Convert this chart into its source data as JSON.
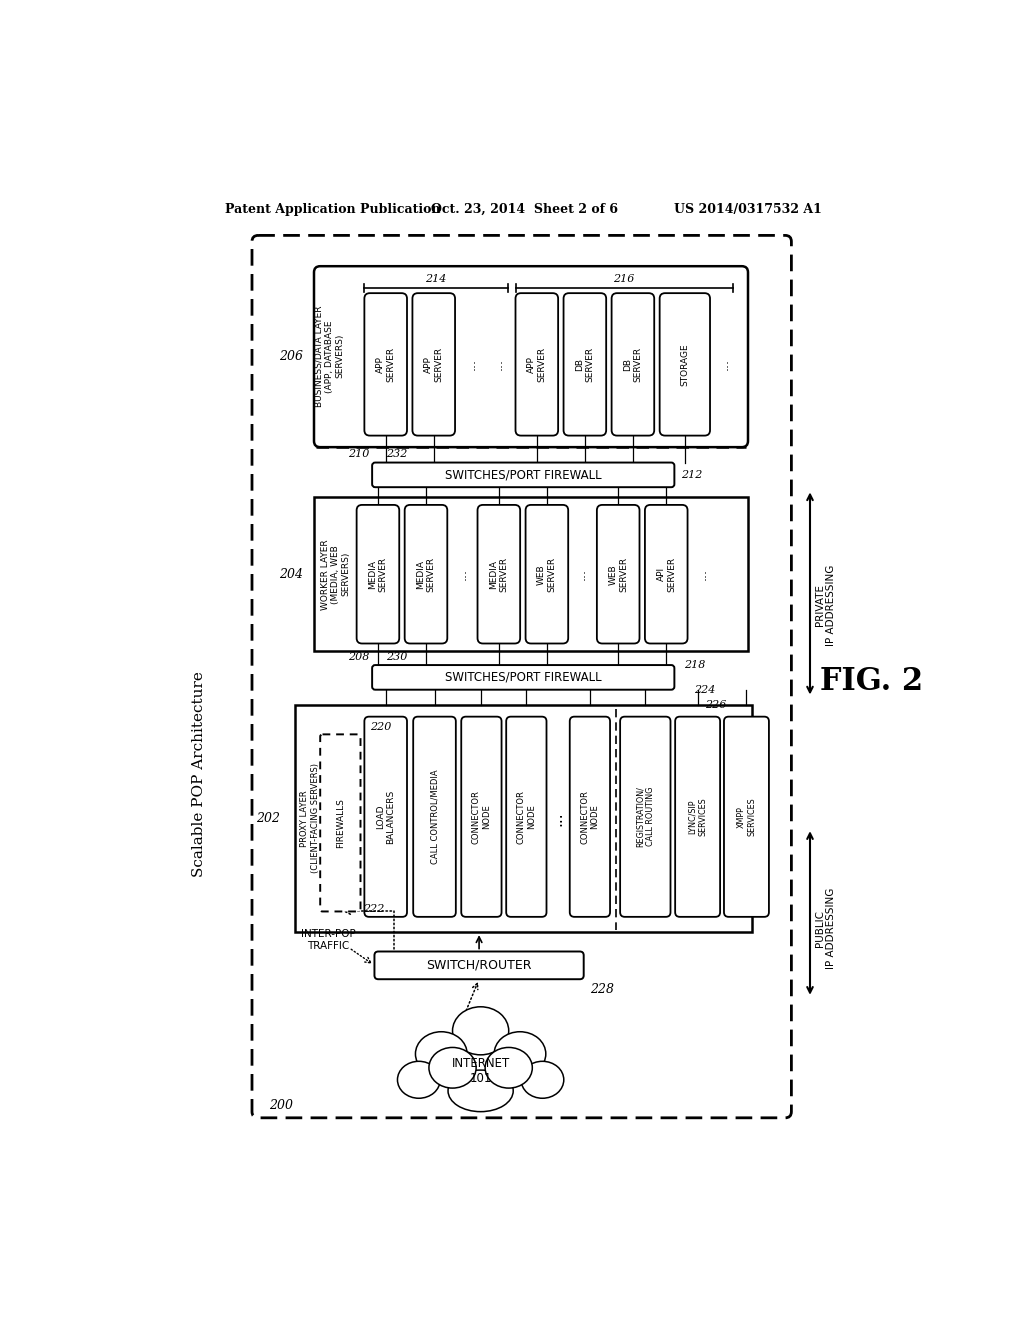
{
  "bg": "#ffffff",
  "header_left": "Patent Application Publication",
  "header_center": "Oct. 23, 2014  Sheet 2 of 6",
  "header_right": "US 2014/0317532 A1",
  "fig_label": "FIG. 2",
  "scalable_label": "Scalable POP Architecture",
  "diagram_id": "200",
  "biz_id": "206",
  "biz_label": "BUSINESS/DATA LAYER\n(APP, DATABASE\nSERVERS)",
  "id_214": "214",
  "id_216": "216",
  "worker_id": "204",
  "worker_label": "WORKER LAYER\n(MEDIA, WEB\nSERVERS)",
  "proxy_id": "202",
  "proxy_label": "PROXY LAYER\n(CLIENT-FACING SERVERS)",
  "sw_fw": "SWITCHES/PORT FIREWALL",
  "id_232": "232",
  "id_212": "212",
  "id_210": "210",
  "id_230": "230",
  "id_208": "208",
  "id_218": "218",
  "id_224": "224",
  "id_226": "226",
  "id_220": "220",
  "id_222": "222",
  "private_ip": "PRIVATE\nIP ADDRESSING",
  "public_ip": "PUBLIC\nIP ADDRESSING",
  "switch_router": "SWITCH/ROUTER",
  "id_228": "228",
  "internet": "INTERNET\n101",
  "inter_pop": "INTER-POP\nTRAFFIC",
  "biz_servers": [
    {
      "label": "APP\nSERVER",
      "dot": false
    },
    {
      "label": "APP\nSERVER",
      "dot": false
    },
    {
      "label": "...",
      "dot": true
    },
    {
      "label": "...",
      "dot": true
    },
    {
      "label": "APP\nSERVER",
      "dot": false
    },
    {
      "label": "DB\nSERVER",
      "dot": false
    },
    {
      "label": "DB\nSERVER",
      "dot": false
    },
    {
      "label": "STORAGE",
      "dot": false
    },
    {
      "label": "...",
      "dot": true
    }
  ],
  "worker_servers": [
    {
      "label": "MEDIA\nSERVER",
      "dot": false
    },
    {
      "label": "MEDIA\nSERVER",
      "dot": false
    },
    {
      "label": "...",
      "dot": true
    },
    {
      "label": "MEDIA\nSERVER",
      "dot": false
    },
    {
      "label": "WEB\nSERVER",
      "dot": false
    },
    {
      "label": "...",
      "dot": true
    },
    {
      "label": "WEB\nSERVER",
      "dot": false
    },
    {
      "label": "API\nSERVER",
      "dot": false
    },
    {
      "label": "...",
      "dot": true
    }
  ],
  "proxy_servers": [
    {
      "label": "LOAD\nBALANCERS",
      "dot": false
    },
    {
      "label": "CALL CONTROL/MEDIA",
      "dot": false
    },
    {
      "label": "CONNECTOR\nNODE",
      "dot": false
    },
    {
      "label": "CONNECTOR\nNODE",
      "dot": false
    },
    {
      "label": "...",
      "dot": true
    },
    {
      "label": "CONNECTOR\nNODE",
      "dot": false
    },
    {
      "label": "REGISTRATION/\nCALL ROUTING",
      "dot": false
    },
    {
      "label": "LYNC/SIP\nSERVICES",
      "dot": false
    },
    {
      "label": "XMPP\nSERVICES",
      "dot": false
    }
  ]
}
